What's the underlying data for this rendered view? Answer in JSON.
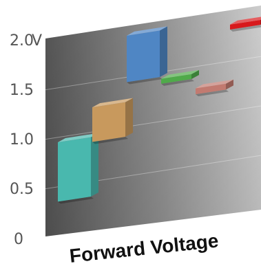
{
  "chart_data": {
    "type": "bar",
    "chart_style": "3d floating range bars on perspective panel",
    "title": "Forward Voltage",
    "unit": "V",
    "y_ticks": [
      "0",
      "0.5",
      "1.0",
      "1.5",
      "2.0"
    ],
    "ylim": [
      0,
      2.0
    ],
    "grid": true,
    "bars": [
      {
        "series": "cyan",
        "color": "#49b8ae",
        "low": 0.35,
        "high": 0.95
      },
      {
        "series": "orange",
        "color": "#c8995d",
        "low": 0.9,
        "high": 1.25
      },
      {
        "series": "blue",
        "color": "#4f86c4",
        "low": 1.45,
        "high": 1.92
      },
      {
        "series": "green",
        "color": "#4faa4a",
        "low": 1.38,
        "high": 1.43
      },
      {
        "series": "salmon",
        "color": "#c27a70",
        "low": 1.22,
        "high": 1.28
      },
      {
        "series": "red",
        "color": "#d8191c",
        "low": 1.82,
        "high": 1.87
      }
    ]
  }
}
